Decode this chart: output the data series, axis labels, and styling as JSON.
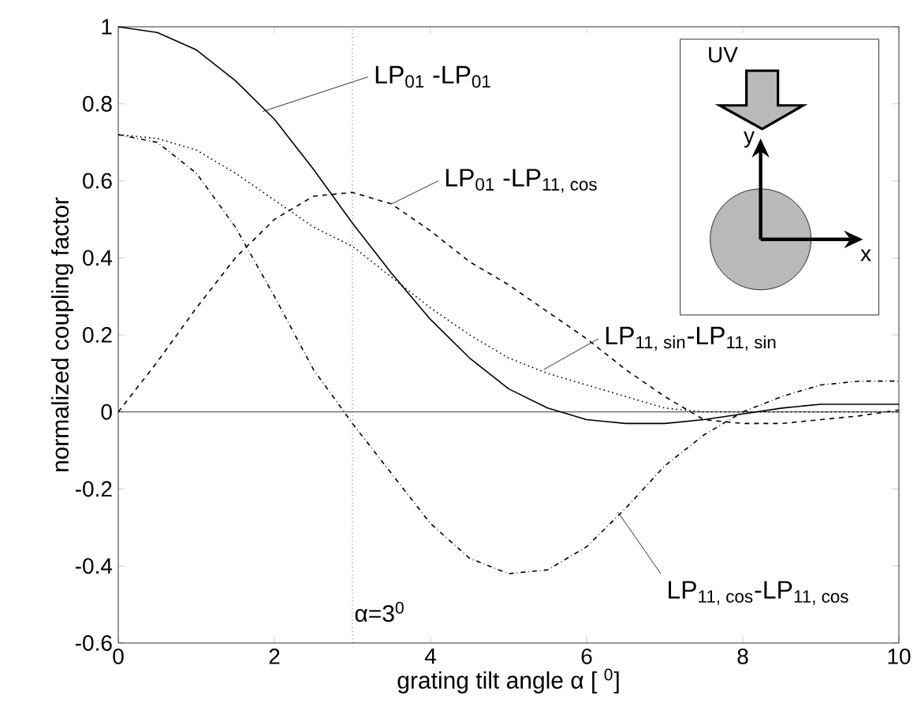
{
  "chart_data": {
    "type": "line",
    "xlabel": "grating tilt angle α [ $^{0}$]",
    "ylabel": "normalized coupling factor",
    "x": [
      0,
      0.5,
      1,
      1.5,
      2,
      2.5,
      3,
      3.5,
      4,
      4.5,
      5,
      5.5,
      6,
      6.5,
      7,
      7.5,
      8,
      8.5,
      9,
      9.5,
      10
    ],
    "series": [
      {
        "color": "#000000",
        "line_style": "solid",
        "values": [
          1,
          0.985,
          0.94,
          0.86,
          0.76,
          0.63,
          0.49,
          0.36,
          0.24,
          0.14,
          0.06,
          0.01,
          -0.02,
          -0.03,
          -0.03,
          -0.02,
          -0.005,
          0.01,
          0.02,
          0.02,
          0.02
        ]
      },
      {
        "color": "#000000",
        "line_style": "dashed",
        "values": [
          0,
          0.13,
          0.27,
          0.4,
          0.5,
          0.56,
          0.57,
          0.54,
          0.47,
          0.39,
          0.33,
          0.26,
          0.19,
          0.11,
          0.04,
          -0.02,
          -0.03,
          -0.03,
          -0.02,
          -0.01,
          0.005
        ]
      },
      {
        "color": "#000000",
        "line_style": "dotted",
        "values": [
          0.72,
          0.71,
          0.68,
          0.62,
          0.55,
          0.48,
          0.43,
          0.35,
          0.27,
          0.2,
          0.14,
          0.1,
          0.07,
          0.04,
          0.01,
          0,
          0,
          0,
          0,
          0,
          0
        ]
      },
      {
        "color": "#000000",
        "line_style": "dashdot",
        "values": [
          0.72,
          0.7,
          0.62,
          0.48,
          0.3,
          0.11,
          -0.03,
          -0.16,
          -0.29,
          -0.38,
          -0.42,
          -0.41,
          -0.35,
          -0.25,
          -0.14,
          -0.06,
          0,
          0.04,
          0.07,
          0.08,
          0.08
        ]
      }
    ],
    "xlim": [
      0,
      10
    ],
    "ylim": [
      -0.6,
      1
    ],
    "xticks": [
      0,
      2,
      4,
      6,
      8,
      10
    ],
    "yticks": [
      -0.6,
      -0.4,
      -0.2,
      0,
      0.2,
      0.4,
      0.6,
      0.8,
      1
    ],
    "grid": false,
    "marker": "none",
    "ref_lines": [
      {
        "axis": "x",
        "value": 3,
        "label": "α=3$^{0}$",
        "line_style": "dotted",
        "color": "#000000"
      },
      {
        "axis": "y",
        "value": 0,
        "line_style": "solid",
        "color": "#000000"
      }
    ],
    "annotations": [
      {
        "text": "LP$_{01}$ -LP$_{01}$",
        "x": 1.85,
        "y": 0.78
      },
      {
        "text": "LP$_{01}$ -LP$_{11, cos}$",
        "x": 3.5,
        "y": 0.54
      },
      {
        "text": "LP$_{11, sin}$-LP$_{11, sin}$",
        "x": 5.45,
        "y": 0.11
      },
      {
        "text": "LP$_{11, cos}$-LP$_{11, cos}$",
        "x": 6.4,
        "y": -0.26
      },
      "UV",
      "y",
      "x"
    ]
  }
}
